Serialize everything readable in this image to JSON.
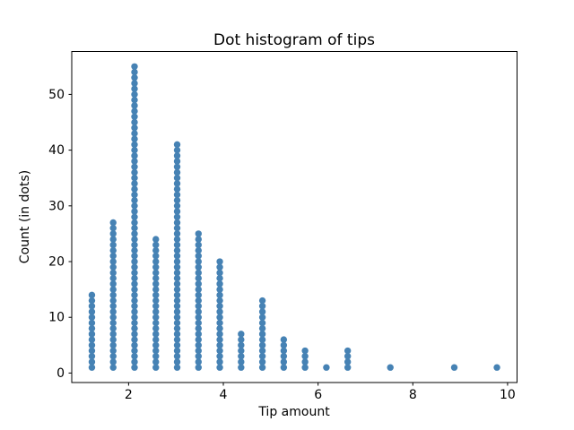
{
  "chart_data": {
    "type": "scatter",
    "variant": "dot-histogram",
    "title": "Dot histogram of tips",
    "xlabel": "Tip amount",
    "ylabel": "Count (in dots)",
    "bin_centers": [
      1.225,
      1.675,
      2.125,
      2.575,
      3.025,
      3.475,
      3.925,
      4.375,
      4.825,
      5.275,
      5.725,
      6.175,
      6.625,
      7.075,
      7.525,
      7.975,
      8.425,
      8.875,
      9.325,
      9.775
    ],
    "counts": [
      14,
      27,
      55,
      24,
      41,
      25,
      20,
      7,
      13,
      6,
      4,
      1,
      4,
      0,
      1,
      0,
      0,
      1,
      0,
      1
    ],
    "dot_stack_rule": "one dot per unit count, centers at y = 1..count",
    "xticks": [
      2,
      4,
      6,
      8,
      10
    ],
    "yticks": [
      0,
      10,
      20,
      30,
      40,
      50
    ],
    "xlim": [
      0.8,
      10.2
    ],
    "ylim": [
      -1.7,
      57.7
    ],
    "grid": false,
    "legend": "none",
    "dot_color": "#4682b4",
    "axis_color": "#000000",
    "background_color": "#ffffff"
  }
}
